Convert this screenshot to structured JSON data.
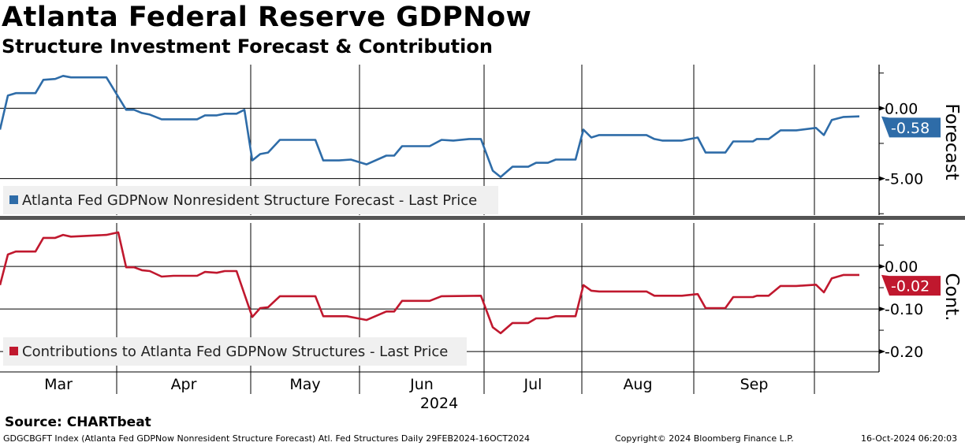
{
  "header": {
    "title": "Atlanta Federal Reserve GDPNow",
    "subtitle": "Structure Investment Forecast & Contribution"
  },
  "footer": {
    "source": "Source: CHARTbeat",
    "description": "GDGCBGFT Index (Atlanta Fed GDPNow Nonresident Structure Forecast) Atl. Fed Structures  Daily 29FEB2024-16OCT2024",
    "copyright": "Copyright© 2024 Bloomberg Finance L.P.",
    "timestamp": "16-Oct-2024 06:20:03"
  },
  "colors": {
    "forecast": "#2e6ca8",
    "contribution": "#c0182e"
  },
  "chart_data": [
    {
      "type": "line",
      "panel": "top",
      "axis_title": "Forecast",
      "ylim": [
        -7.6,
        3.1
      ],
      "yticks": [
        {
          "v": 0,
          "label": "0.00"
        },
        {
          "v": -5,
          "label": "-5.00"
        }
      ],
      "last_value_label": "-0.58",
      "last_value": -0.58,
      "legend": "Atlanta Fed GDPNow Nonresident Structure Forecast - Last Price",
      "legend_placement": "bottom-left",
      "xlim": [
        0,
        223
      ],
      "x": [
        0,
        2,
        4,
        9,
        11,
        14,
        16,
        18,
        27,
        32,
        34,
        36,
        38,
        41,
        50,
        52,
        55,
        57,
        60,
        62,
        64,
        66,
        68,
        71,
        80,
        82,
        86,
        89,
        93,
        98,
        100,
        102,
        109,
        112,
        115,
        119,
        122,
        125,
        127,
        130,
        134,
        136,
        139,
        141,
        146,
        148,
        150,
        152,
        164,
        166,
        168,
        173,
        177,
        179,
        184,
        186,
        191,
        192,
        195,
        198,
        202,
        207,
        209,
        211,
        214,
        218
      ],
      "values": [
        -1.52,
        0.9,
        1.07,
        1.07,
        2.02,
        2.08,
        2.3,
        2.19,
        2.19,
        -0.11,
        -0.11,
        -0.34,
        -0.45,
        -0.79,
        -0.79,
        -0.51,
        -0.51,
        -0.39,
        -0.39,
        -0.11,
        -3.71,
        -3.26,
        -3.15,
        -2.25,
        -2.25,
        -3.71,
        -3.71,
        -3.65,
        -3.99,
        -3.37,
        -3.37,
        -2.7,
        -2.7,
        -2.25,
        -2.3,
        -2.19,
        -2.19,
        -4.44,
        -4.89,
        -4.16,
        -4.16,
        -3.88,
        -3.88,
        -3.65,
        -3.65,
        -1.52,
        -2.08,
        -1.91,
        -1.91,
        -2.19,
        -2.3,
        -2.3,
        -2.08,
        -3.15,
        -3.15,
        -2.36,
        -2.36,
        -2.19,
        -2.19,
        -1.57,
        -1.57,
        -1.4,
        -1.91,
        -0.84,
        -0.62,
        -0.58
      ]
    },
    {
      "type": "line",
      "panel": "bottom",
      "axis_title": "Cont.",
      "ylim": [
        -0.248,
        0.102
      ],
      "yticks": [
        {
          "v": 0,
          "label": "0.00"
        },
        {
          "v": -0.1,
          "label": "-0.10"
        },
        {
          "v": -0.2,
          "label": "-0.20"
        }
      ],
      "last_value_label": "-0.02",
      "last_value": -0.02,
      "legend": "Contributions to Atlanta Fed GDPNow Structures - Last Price",
      "legend_placement": "bottom-left",
      "xlim": [
        0,
        223
      ],
      "x": [
        0,
        2,
        4,
        9,
        11,
        14,
        16,
        18,
        27,
        30,
        32,
        34,
        36,
        38,
        41,
        44,
        50,
        52,
        55,
        57,
        60,
        64,
        66,
        68,
        71,
        80,
        82,
        88,
        93,
        98,
        100,
        102,
        109,
        112,
        122,
        125,
        127,
        130,
        134,
        136,
        139,
        141,
        146,
        148,
        150,
        152,
        164,
        166,
        173,
        177,
        179,
        184,
        186,
        191,
        192,
        195,
        198,
        202,
        207,
        209,
        211,
        214,
        218
      ],
      "values": [
        -0.044,
        0.028,
        0.035,
        0.035,
        0.067,
        0.067,
        0.074,
        0.07,
        0.074,
        0.08,
        -0.002,
        -0.002,
        -0.009,
        -0.011,
        -0.024,
        -0.022,
        -0.022,
        -0.013,
        -0.015,
        -0.011,
        -0.011,
        -0.119,
        -0.098,
        -0.096,
        -0.07,
        -0.07,
        -0.117,
        -0.117,
        -0.126,
        -0.106,
        -0.106,
        -0.081,
        -0.081,
        -0.07,
        -0.069,
        -0.143,
        -0.157,
        -0.133,
        -0.133,
        -0.122,
        -0.122,
        -0.117,
        -0.117,
        -0.044,
        -0.057,
        -0.059,
        -0.059,
        -0.069,
        -0.069,
        -0.065,
        -0.098,
        -0.098,
        -0.072,
        -0.072,
        -0.069,
        -0.069,
        -0.046,
        -0.046,
        -0.043,
        -0.061,
        -0.028,
        -0.02,
        -0.02
      ]
    }
  ],
  "x_axis": {
    "month_labels": [
      "Mar",
      "Apr",
      "May",
      "Jun",
      "Jul",
      "Aug",
      "Sep"
    ],
    "month_boundaries": [
      29.6,
      63.6,
      91.2,
      122.8,
      147.6,
      176,
      206.6
    ],
    "year_label": "2024"
  }
}
